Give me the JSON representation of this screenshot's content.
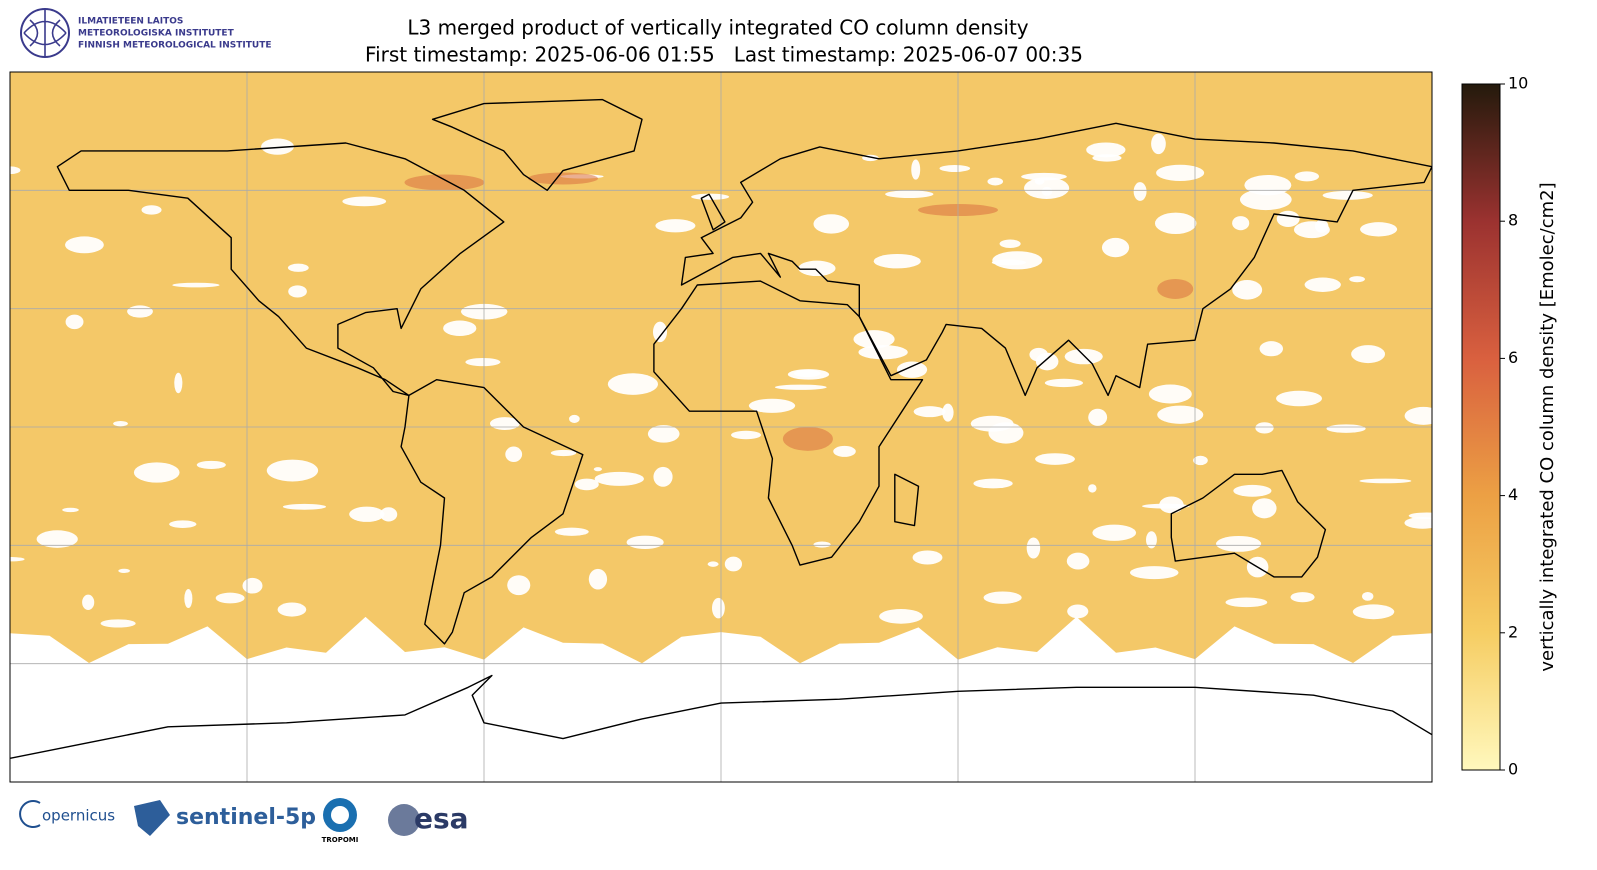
{
  "header": {
    "org_lines": [
      "ILMATIETEEN LAITOS",
      "METEOROLOGISKA INSTITUTET",
      "FINNISH METEOROLOGICAL INSTITUTE"
    ],
    "title": "L3 merged product of vertically integrated CO column density",
    "subtitle": "First timestamp: 2025-06-06 01:55   Last timestamp: 2025-06-07 00:35"
  },
  "colorbar": {
    "label": "vertically integrated CO column density [Emolec/cm2]",
    "lim": [
      0,
      10
    ],
    "ticks": [
      0,
      2,
      4,
      6,
      8,
      10
    ],
    "colormap": [
      "#fff8bd",
      "#f6cd63",
      "#eca044",
      "#d9603f",
      "#9b3230",
      "#241a0c"
    ]
  },
  "footer": {
    "logos": [
      "opernicus",
      "sentinel-5p",
      "TROPOMI",
      "esa"
    ]
  }
}
